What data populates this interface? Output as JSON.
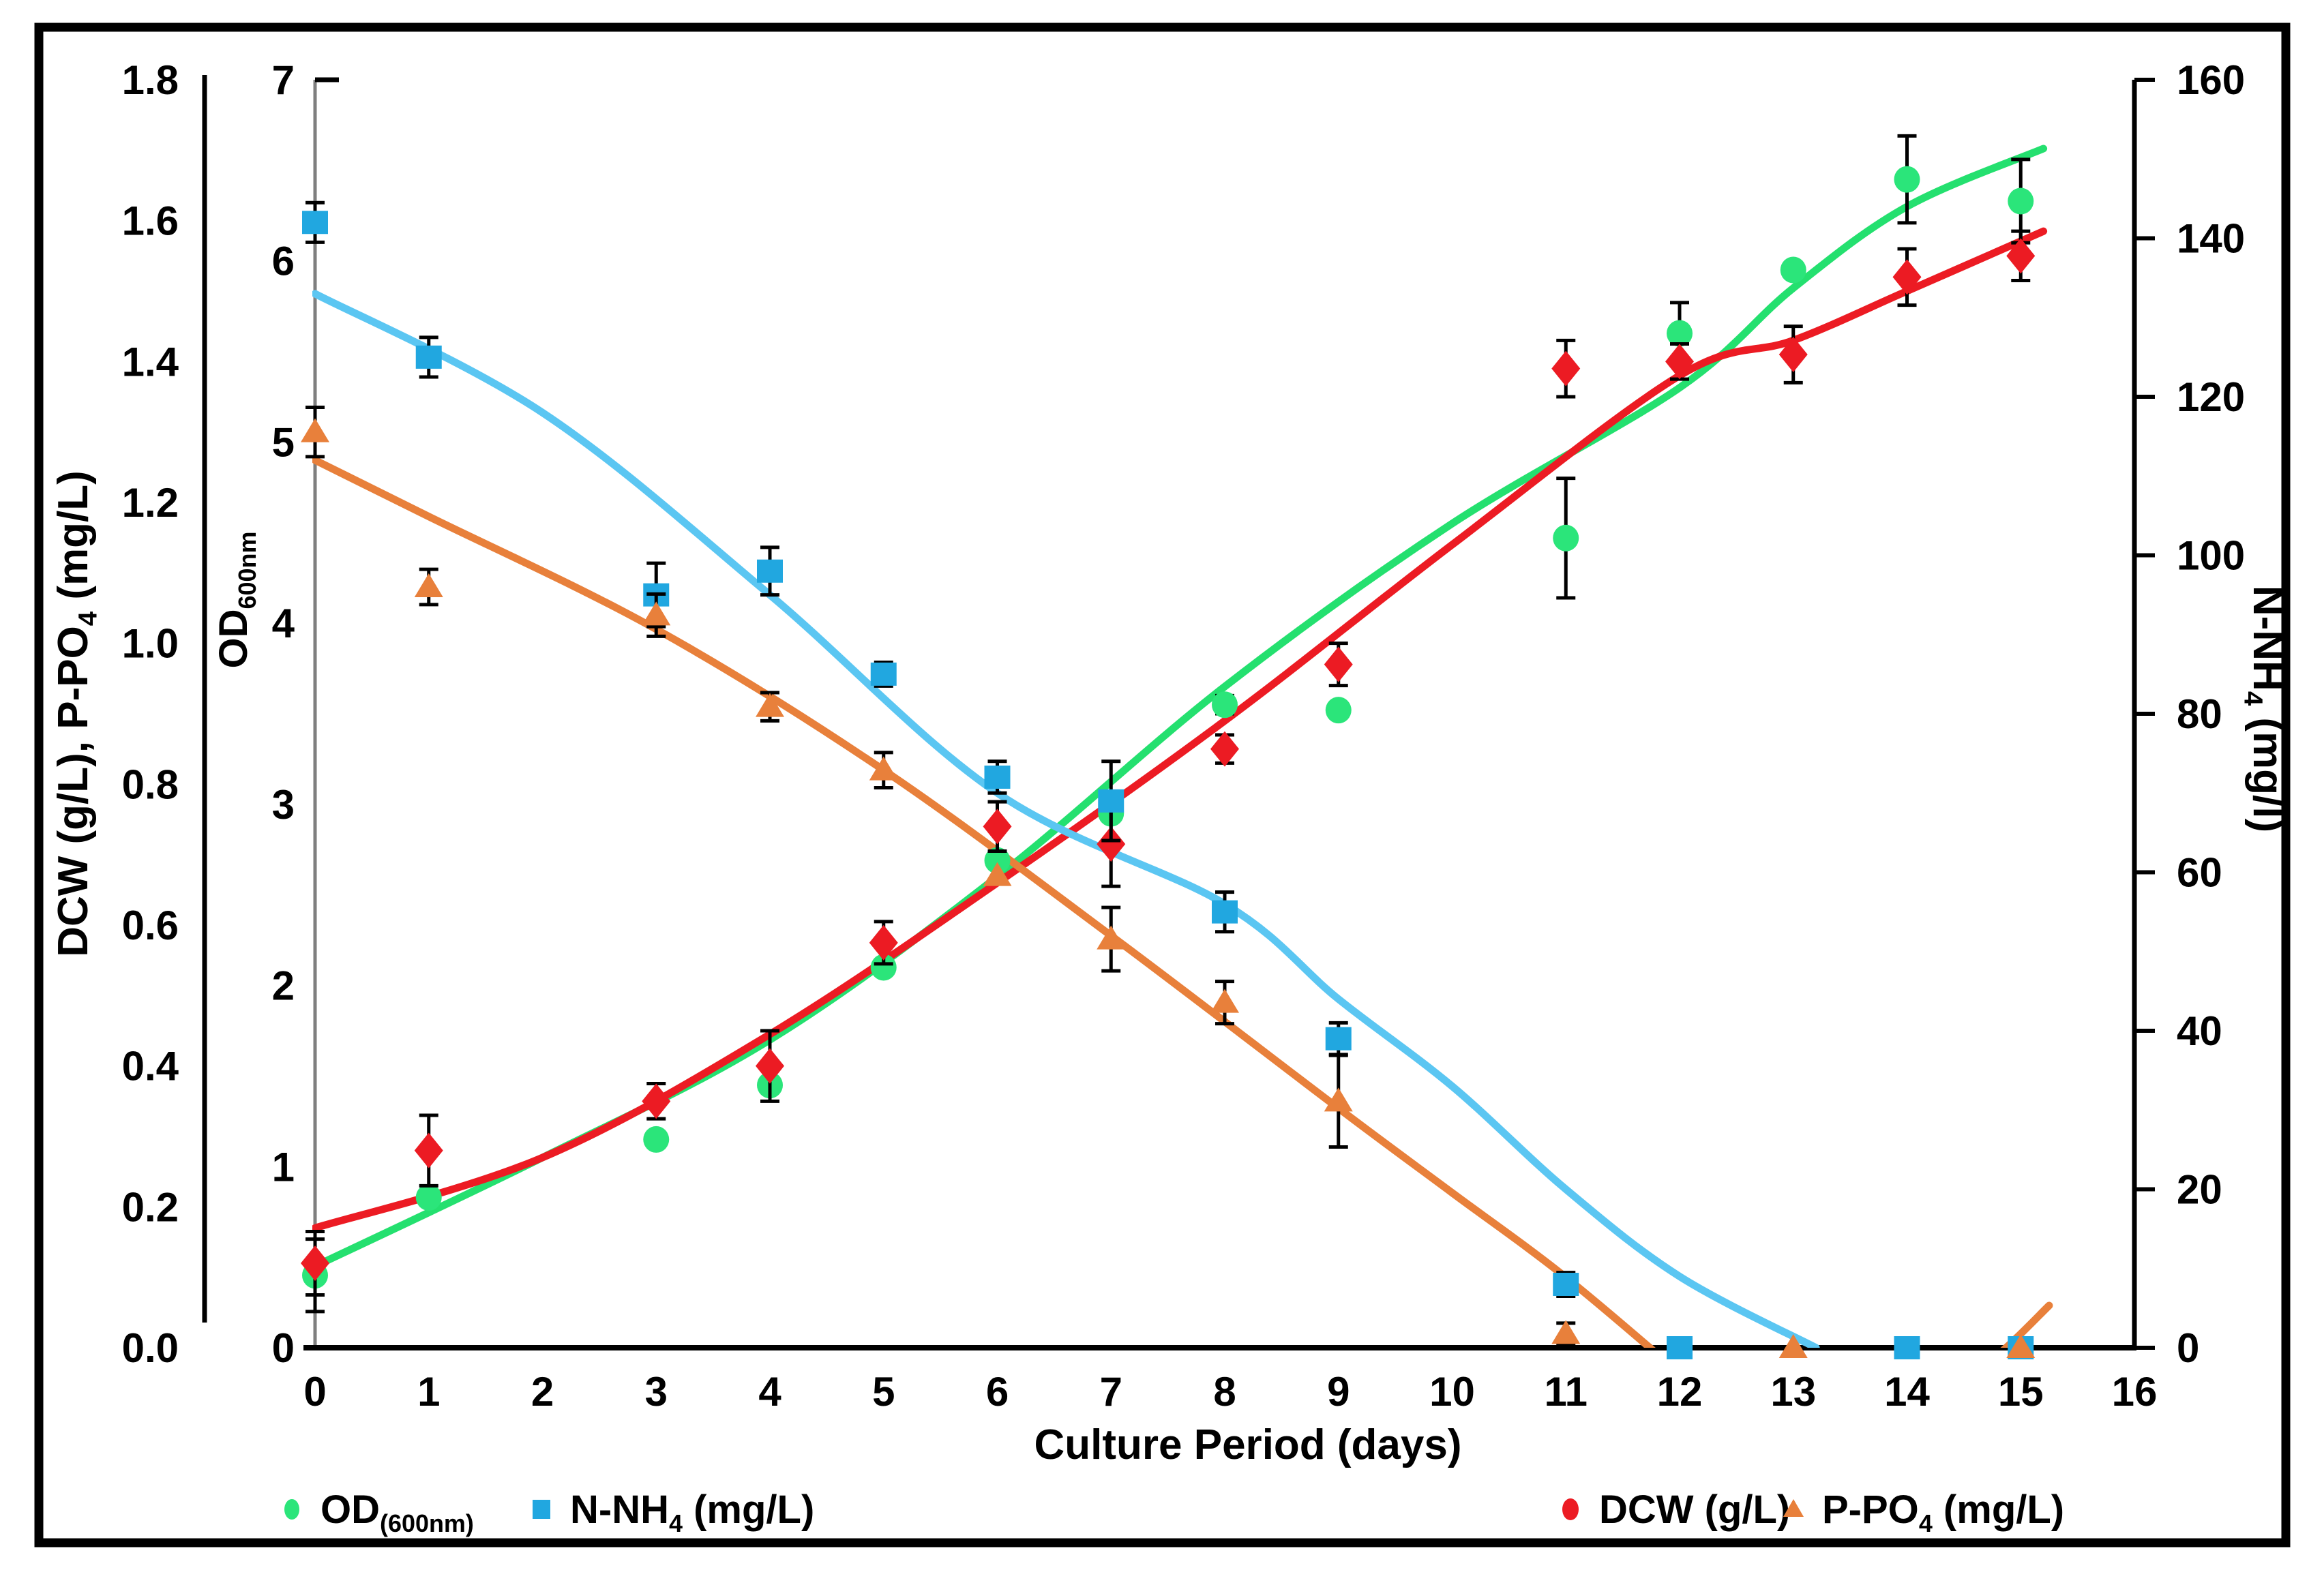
{
  "figure": {
    "background": "#FFFFFF",
    "border_color": "#000000"
  },
  "chart_data": {
    "type": "scatter",
    "title": "",
    "x_axis": {
      "label": "Culture Period (days)",
      "min": 0,
      "max": 16,
      "tick_labels": [
        "0",
        "1",
        "2",
        "3",
        "4",
        "5",
        "6",
        "7",
        "8",
        "9",
        "10",
        "11",
        "12",
        "13",
        "14",
        "15",
        "16"
      ]
    },
    "y_axis_left_outer": {
      "label": "DCW (g/L), P-PO4 (mg/L)",
      "label_parts": [
        {
          "t": "DCW (g/L), P-PO"
        },
        {
          "t": "4",
          "sub": true
        },
        {
          "t": " (mg/L)"
        }
      ],
      "min": 0.0,
      "max": 1.8,
      "tick_labels": [
        "1.8",
        "1.6",
        "1.4",
        "1.2",
        "1.0",
        "0.8",
        "0.6",
        "0.4",
        "0.2",
        "0.0"
      ]
    },
    "y_axis_left_inner": {
      "label": "OD600nm",
      "label_parts": [
        {
          "t": "OD"
        },
        {
          "t": "600nm",
          "sub": true
        }
      ],
      "min": 0,
      "max": 7,
      "tick_labels": [
        "7",
        "6",
        "5",
        "4",
        "3",
        "2",
        "1",
        "0"
      ]
    },
    "y_axis_right": {
      "label": "N-NH4 (mg/l)",
      "label_parts": [
        {
          "t": "N-NH"
        },
        {
          "t": "4",
          "sub": true
        },
        {
          "t": " (mg/l)"
        }
      ],
      "min": 0,
      "max": 160,
      "tick_labels": [
        "160",
        "140",
        "120",
        "100",
        "80",
        "60",
        "40",
        "20",
        "0"
      ]
    },
    "grid": "off",
    "legend_position": "bottom",
    "series": [
      {
        "name": "OD(600nm)",
        "legend_parts": [
          {
            "t": "OD"
          },
          {
            "t": "(600nm)",
            "sub": true
          }
        ],
        "axis": "od",
        "marker": "circle",
        "marker_color": "#2BE57A",
        "points": [
          {
            "x": 0,
            "y": 0.4,
            "err": 0.2
          },
          {
            "x": 1,
            "y": 0.83,
            "err": 0
          },
          {
            "x": 3,
            "y": 1.15,
            "err": 0
          },
          {
            "x": 4,
            "y": 1.45,
            "err": 0
          },
          {
            "x": 5,
            "y": 2.1,
            "err": 0
          },
          {
            "x": 6,
            "y": 2.69,
            "err": 0
          },
          {
            "x": 7,
            "y": 2.95,
            "err": 0
          },
          {
            "x": 8,
            "y": 3.55,
            "err": 0.05
          },
          {
            "x": 9,
            "y": 3.52,
            "err": 0
          },
          {
            "x": 11,
            "y": 4.47,
            "err": 0.33
          },
          {
            "x": 12,
            "y": 5.6,
            "err": 0.17
          },
          {
            "x": 13,
            "y": 5.95,
            "err": 0
          },
          {
            "x": 14,
            "y": 6.45,
            "err": 0.24
          },
          {
            "x": 15,
            "y": 6.33,
            "err": 0.23
          }
        ]
      },
      {
        "name": "DCW (g/L)",
        "legend_parts": [
          {
            "t": "DCW (g/L)"
          }
        ],
        "axis": "left",
        "marker": "diamond",
        "marker_color": "#EC1B23",
        "points": [
          {
            "x": 0,
            "y": 0.12,
            "err": 0.045
          },
          {
            "x": 1,
            "y": 0.28,
            "err": 0.05
          },
          {
            "x": 3,
            "y": 0.35,
            "err": 0.025
          },
          {
            "x": 4,
            "y": 0.4,
            "err": 0.05
          },
          {
            "x": 5,
            "y": 0.575,
            "err": 0.03
          },
          {
            "x": 6,
            "y": 0.74,
            "err": 0.035
          },
          {
            "x": 7,
            "y": 0.715,
            "err": 0.06
          },
          {
            "x": 8,
            "y": 0.85,
            "err": 0.02
          },
          {
            "x": 9,
            "y": 0.97,
            "err": 0.03
          },
          {
            "x": 11,
            "y": 1.39,
            "err": 0.04
          },
          {
            "x": 12,
            "y": 1.4,
            "err": 0.025
          },
          {
            "x": 13,
            "y": 1.41,
            "err": 0.04
          },
          {
            "x": 14,
            "y": 1.52,
            "err": 0.04
          },
          {
            "x": 15,
            "y": 1.55,
            "err": 0.035
          }
        ]
      },
      {
        "name": "N-NH4 (mg/L)",
        "legend_parts": [
          {
            "t": "N-NH"
          },
          {
            "t": "4",
            "sub": true
          },
          {
            "t": " (mg/L)"
          }
        ],
        "axis": "right",
        "marker": "square",
        "marker_color": "#21A7E0",
        "points": [
          {
            "x": 0,
            "y": 142,
            "err": 2.5
          },
          {
            "x": 1,
            "y": 125,
            "err": 2.5
          },
          {
            "x": 3,
            "y": 95,
            "err": 4
          },
          {
            "x": 4,
            "y": 98,
            "err": 3
          },
          {
            "x": 5,
            "y": 85,
            "err": 1.5
          },
          {
            "x": 6,
            "y": 72,
            "err": 2
          },
          {
            "x": 7,
            "y": 69,
            "err": 5
          },
          {
            "x": 8,
            "y": 55,
            "err": 2.5
          },
          {
            "x": 9,
            "y": 39,
            "err": 2
          },
          {
            "x": 11,
            "y": 8,
            "err": 1.5
          },
          {
            "x": 12,
            "y": 0,
            "err": 0
          },
          {
            "x": 14,
            "y": 0,
            "err": 0
          },
          {
            "x": 15,
            "y": 0,
            "err": 0
          }
        ]
      },
      {
        "name": "P-PO4 (mg/L)",
        "legend_parts": [
          {
            "t": "P-PO"
          },
          {
            "t": "4",
            "sub": true
          },
          {
            "t": " (mg/L)"
          }
        ],
        "axis": "left",
        "marker": "triangle",
        "marker_color": "#E8803B",
        "points": [
          {
            "x": 0,
            "y": 1.3,
            "err": 0.035
          },
          {
            "x": 1,
            "y": 1.08,
            "err": 0.025
          },
          {
            "x": 3,
            "y": 1.04,
            "err": 0.03
          },
          {
            "x": 4,
            "y": 0.91,
            "err": 0.02
          },
          {
            "x": 5,
            "y": 0.82,
            "err": 0.025
          },
          {
            "x": 6,
            "y": 0.67,
            "err": 0
          },
          {
            "x": 7,
            "y": 0.58,
            "err": 0.045
          },
          {
            "x": 8,
            "y": 0.49,
            "err": 0.03
          },
          {
            "x": 9,
            "y": 0.35,
            "err": 0.065
          },
          {
            "x": 11,
            "y": 0.02,
            "err": 0.015
          },
          {
            "x": 13,
            "y": 0.0,
            "err": 0
          },
          {
            "x": 15,
            "y": 0.0,
            "err": 0
          }
        ]
      }
    ],
    "fitted_curves": [
      {
        "series": "OD(600nm)",
        "axis": "od",
        "color": "#24E06F",
        "points": [
          [
            0,
            0.45
          ],
          [
            2,
            1.05
          ],
          [
            4,
            1.7
          ],
          [
            6,
            2.6
          ],
          [
            8,
            3.65
          ],
          [
            10,
            4.55
          ],
          [
            12,
            5.3
          ],
          [
            13,
            5.85
          ],
          [
            14,
            6.3
          ],
          [
            15.2,
            6.62
          ]
        ]
      },
      {
        "series": "DCW (g/L)",
        "axis": "left",
        "color": "#EC1B23",
        "points": [
          [
            0,
            0.17
          ],
          [
            2,
            0.27
          ],
          [
            4,
            0.445
          ],
          [
            6,
            0.66
          ],
          [
            8,
            0.89
          ],
          [
            10,
            1.14
          ],
          [
            12,
            1.38
          ],
          [
            13,
            1.43
          ],
          [
            14,
            1.5
          ],
          [
            15.2,
            1.585
          ]
        ]
      },
      {
        "series": "N-NH4 (mg/L)",
        "axis": "right",
        "color": "#5BC6F2",
        "points": [
          [
            0,
            133
          ],
          [
            2,
            118
          ],
          [
            4,
            95
          ],
          [
            6,
            70
          ],
          [
            8,
            56
          ],
          [
            9,
            44
          ],
          [
            10,
            33
          ],
          [
            11,
            20
          ],
          [
            12,
            9
          ],
          [
            13.2,
            0
          ]
        ]
      },
      {
        "series": "P-PO4 (mg/L)",
        "axis": "left",
        "color": "#E8803B",
        "points": [
          [
            0,
            1.26
          ],
          [
            1,
            1.18
          ],
          [
            3,
            1.02
          ],
          [
            5,
            0.82
          ],
          [
            7,
            0.585
          ],
          [
            9,
            0.34
          ],
          [
            10,
            0.22
          ],
          [
            11,
            0.1
          ],
          [
            12.1,
            -0.05
          ]
        ]
      },
      {
        "series": "P-PO4 (mg/L) tail",
        "axis": "left",
        "color": "#E8803B",
        "points": [
          [
            14.35,
            -0.06
          ],
          [
            14.8,
            -0.01
          ],
          [
            15.25,
            0.06
          ]
        ]
      }
    ]
  }
}
